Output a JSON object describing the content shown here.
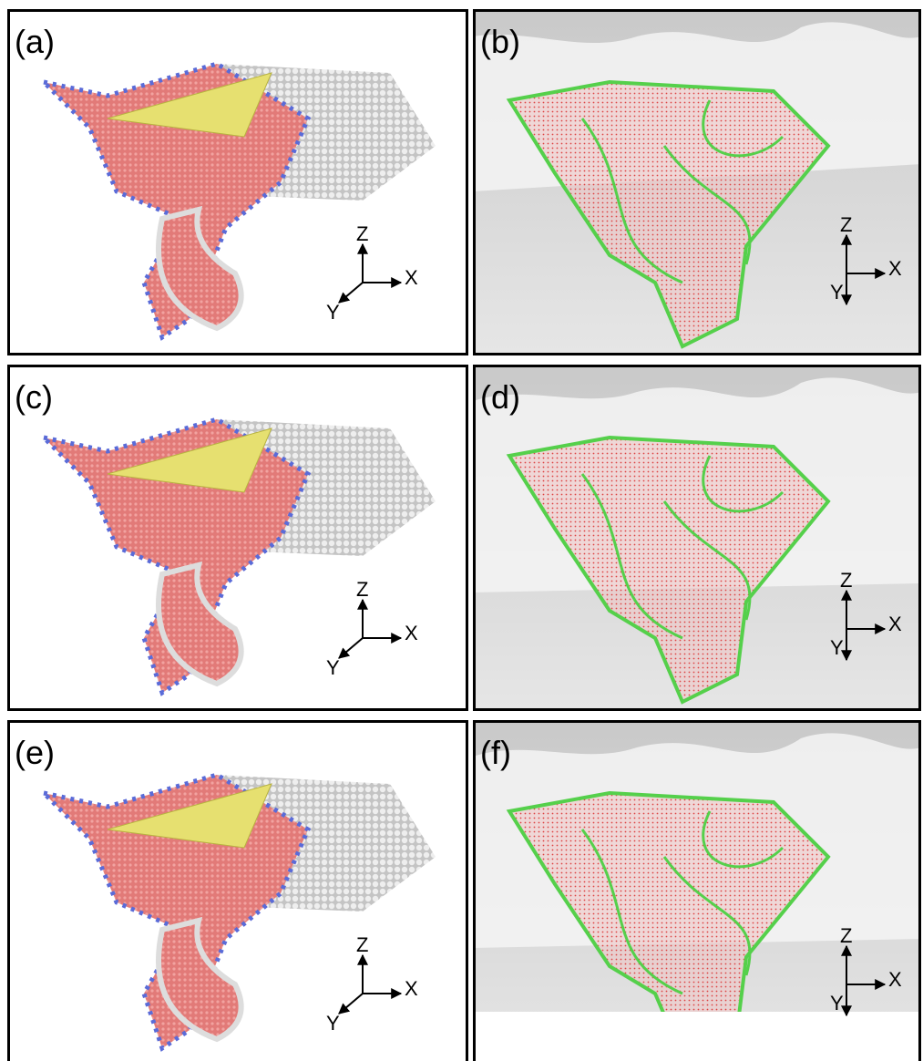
{
  "panels": [
    {
      "label": "(a)",
      "axes": {
        "z": "Z",
        "x": "X",
        "y": "Y"
      }
    },
    {
      "label": "(b)",
      "axes": {
        "z": "Z",
        "x": "X",
        "y": "Y"
      }
    },
    {
      "label": "(c)",
      "axes": {
        "z": "Z",
        "x": "X",
        "y": "Y"
      }
    },
    {
      "label": "(d)",
      "axes": {
        "z": "Z",
        "x": "X",
        "y": "Y"
      }
    },
    {
      "label": "(e)",
      "axes": {
        "z": "Z",
        "x": "X",
        "y": "Y"
      }
    },
    {
      "label": "(f)",
      "axes": {
        "z": "Z",
        "x": "X",
        "y": "Y"
      }
    }
  ]
}
